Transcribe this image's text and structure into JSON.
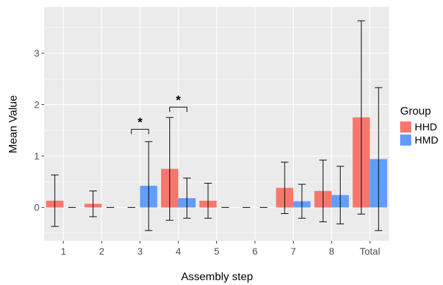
{
  "chart_data": {
    "type": "bar",
    "xlabel": "Assembly step",
    "ylabel": "Mean Value",
    "ylim": [
      -0.65,
      3.9
    ],
    "yticks": [
      0,
      1,
      2,
      3
    ],
    "grid": true,
    "legend_position": "right",
    "legend_title": "Group",
    "categories": [
      "1",
      "2",
      "3",
      "4",
      "5",
      "6",
      "7",
      "8",
      "Total"
    ],
    "series": [
      {
        "name": "HHD",
        "color": "#F8766D",
        "values": [
          0.13,
          0.07,
          0.0,
          0.75,
          0.13,
          0.0,
          0.38,
          0.32,
          1.75
        ],
        "error_low": [
          -0.37,
          -0.18,
          0.0,
          -0.25,
          -0.21,
          0.0,
          -0.12,
          -0.28,
          -0.13
        ],
        "error_high": [
          0.63,
          0.32,
          0.0,
          1.75,
          0.47,
          0.0,
          0.88,
          0.92,
          3.63
        ]
      },
      {
        "name": "HMD",
        "color": "#619CFF",
        "values": [
          0.0,
          0.0,
          0.42,
          0.18,
          0.0,
          0.0,
          0.12,
          0.24,
          0.94
        ],
        "error_low": [
          0.0,
          0.0,
          -0.45,
          -0.21,
          0.0,
          0.0,
          -0.21,
          -0.32,
          -0.45
        ],
        "error_high": [
          0.0,
          0.0,
          1.28,
          0.57,
          0.0,
          0.0,
          0.45,
          0.8,
          2.33
        ]
      }
    ],
    "annotations": [
      {
        "text": "*",
        "category_index": 2,
        "y": 1.52
      },
      {
        "text": "*",
        "category_index": 3,
        "y": 1.95
      }
    ]
  }
}
